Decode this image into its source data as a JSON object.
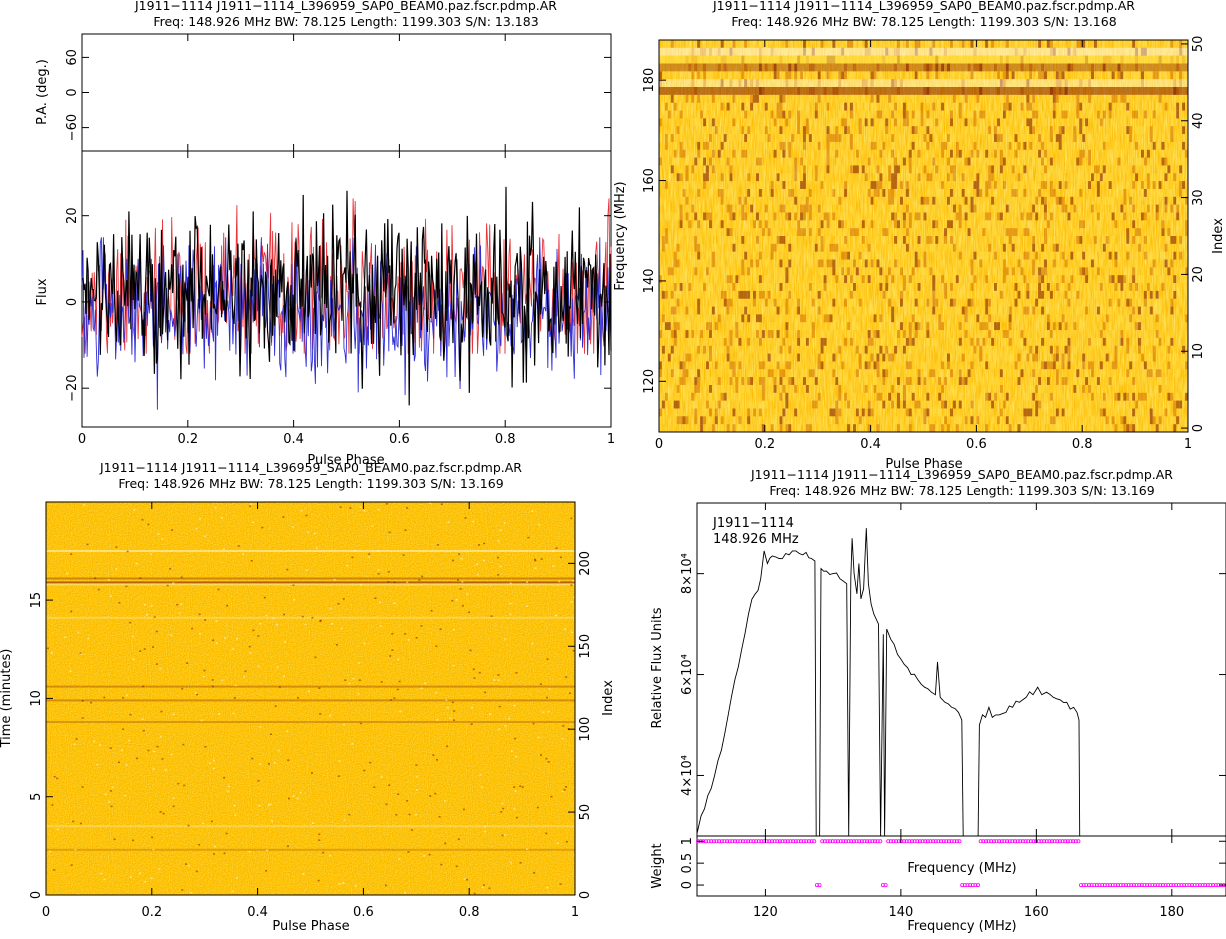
{
  "colors": {
    "flux_I": "#000000",
    "flux_L": "#e8343a",
    "flux_V": "#2f2fd6",
    "weight_marker": "#ff00ff",
    "heat_low": "#ffe04a",
    "heat_mid": "#f5a300",
    "heat_high": "#7a1200"
  },
  "chart_data": [
    {
      "id": "profile",
      "type": "line",
      "title": "J1911−1114 J1911−1114_L396959_SAP0_BEAM0.paz.fscr.pdmp.AR",
      "subtitle": "Freq: 148.926 MHz BW: 78.125 Length: 1199.303 S/N: 13.183",
      "xlabel": "Pulse Phase",
      "ylabel": "Flux",
      "xlim": [
        0,
        1
      ],
      "ylim": [
        -29,
        35
      ],
      "xticks": [
        "0",
        "0.2",
        "0.4",
        "0.6",
        "0.8",
        "1"
      ],
      "yticks": [
        "−20",
        "0",
        "20"
      ],
      "series": [
        {
          "key": "I",
          "approx_range": [
            -24,
            31
          ]
        },
        {
          "key": "L",
          "approx_range": [
            -13,
            24
          ]
        },
        {
          "key": "V",
          "approx_range": [
            -25,
            15
          ]
        }
      ],
      "pa_panel": {
        "ylabel": "P.A. (deg.)",
        "ylim": [
          -100,
          100
        ],
        "yticks": [
          "−60",
          "0",
          "60"
        ]
      }
    },
    {
      "id": "freq_phase",
      "type": "heatmap",
      "title": "J1911−1114 J1911−1114_L396959_SAP0_BEAM0.paz.fscr.pdmp.AR",
      "subtitle": "Freq: 148.926 MHz BW: 78.125 Length: 1199.303 S/N: 13.168",
      "xlabel": "Pulse Phase",
      "ylabel": "Frequency (MHz)",
      "ylabel_right": "Index",
      "xlim": [
        0,
        1
      ],
      "ylim": [
        109.9,
        188.0
      ],
      "xticks": [
        "0",
        "0.2",
        "0.4",
        "0.6",
        "0.8",
        "1"
      ],
      "yticks": [
        "120",
        "140",
        "160",
        "180"
      ],
      "yticks_right": [
        "0",
        "10",
        "20",
        "30",
        "40",
        "50"
      ],
      "index_range": [
        0,
        50
      ]
    },
    {
      "id": "time_phase",
      "type": "heatmap",
      "title": "J1911−1114 J1911−1114_L396959_SAP0_BEAM0.paz.fscr.pdmp.AR",
      "subtitle": "Freq: 148.926 MHz BW: 78.125 Length: 1199.303 S/N: 13.169",
      "xlabel": "Pulse Phase",
      "ylabel": "Time (minutes)",
      "ylabel_right": "Index",
      "xlim": [
        0,
        1
      ],
      "ylim": [
        0,
        19.99
      ],
      "xticks": [
        "0",
        "0.2",
        "0.4",
        "0.6",
        "0.8",
        "1"
      ],
      "yticks": [
        "0",
        "5",
        "10",
        "15"
      ],
      "yticks_right": [
        "0",
        "50",
        "100",
        "150",
        "200"
      ],
      "index_range": [
        0,
        237
      ]
    },
    {
      "id": "bandpass",
      "type": "line",
      "title": "J1911−1114 J1911−1114_L396959_SAP0_BEAM0.paz.fscr.pdmp.AR",
      "subtitle": "Freq: 148.926 MHz BW: 78.125 Length: 1199.303 S/N: 13.169",
      "annotation": [
        "J1911−1114",
        "148.926 MHz"
      ],
      "xlabel": "Frequency (MHz)",
      "ylabel": "Relative Flux Units",
      "xlim": [
        109.9,
        188.0
      ],
      "ylim": [
        28000,
        94000
      ],
      "xticks": [
        "120",
        "140",
        "160",
        "180"
      ],
      "yticks": [
        "4×10⁴",
        "6×10⁴",
        "8×10⁴"
      ],
      "points": [
        [
          109.9,
          28500
        ],
        [
          110.5,
          32000
        ],
        [
          111.5,
          36000
        ],
        [
          112.5,
          40000
        ],
        [
          113.5,
          45000
        ],
        [
          114.5,
          52000
        ],
        [
          115.5,
          59000
        ],
        [
          116.5,
          65000
        ],
        [
          117.5,
          72000
        ],
        [
          118.5,
          76000
        ],
        [
          119.3,
          79000
        ],
        [
          119.8,
          84500
        ],
        [
          120.3,
          82000
        ],
        [
          121.0,
          83500
        ],
        [
          122.0,
          83000
        ],
        [
          123.0,
          84000
        ],
        [
          124.0,
          84500
        ],
        [
          125.0,
          84000
        ],
        [
          126.0,
          84200
        ],
        [
          126.8,
          83000
        ],
        [
          127.3,
          82500
        ],
        [
          127.5,
          28000
        ],
        [
          128.0,
          28000
        ],
        [
          128.2,
          81000
        ],
        [
          129.0,
          80500
        ],
        [
          130.0,
          80000
        ],
        [
          131.0,
          79000
        ],
        [
          132.0,
          78000
        ],
        [
          132.3,
          28000
        ],
        [
          132.6,
          79000
        ],
        [
          132.8,
          87000
        ],
        [
          133.1,
          80000
        ],
        [
          133.5,
          76000
        ],
        [
          133.8,
          82000
        ],
        [
          134.1,
          75000
        ],
        [
          134.5,
          77000
        ],
        [
          134.9,
          89000
        ],
        [
          135.2,
          78000
        ],
        [
          135.6,
          74000
        ],
        [
          136.0,
          72000
        ],
        [
          136.7,
          70000
        ],
        [
          137.0,
          28000
        ],
        [
          137.4,
          68000
        ],
        [
          137.6,
          28000
        ],
        [
          137.9,
          69000
        ],
        [
          138.5,
          67000
        ],
        [
          139.5,
          64000
        ],
        [
          140.5,
          62000
        ],
        [
          141.5,
          60000
        ],
        [
          142.5,
          59000
        ],
        [
          143.5,
          57500
        ],
        [
          144.5,
          56500
        ],
        [
          145.1,
          56000
        ],
        [
          145.4,
          62500
        ],
        [
          145.8,
          55500
        ],
        [
          146.5,
          54500
        ],
        [
          147.5,
          53500
        ],
        [
          148.5,
          52500
        ],
        [
          149.0,
          51000
        ],
        [
          149.2,
          28000
        ],
        [
          151.4,
          28000
        ],
        [
          151.6,
          50000
        ],
        [
          152.5,
          51500
        ],
        [
          153.0,
          53500
        ],
        [
          153.5,
          51500
        ],
        [
          154.5,
          52000
        ],
        [
          155.5,
          52500
        ],
        [
          156.5,
          53500
        ],
        [
          157.5,
          54500
        ],
        [
          158.5,
          55500
        ],
        [
          159.5,
          56000
        ],
        [
          160.2,
          57500
        ],
        [
          160.8,
          56000
        ],
        [
          161.5,
          56500
        ],
        [
          162.5,
          55500
        ],
        [
          163.5,
          55000
        ],
        [
          164.5,
          54500
        ],
        [
          165.5,
          53500
        ],
        [
          166.0,
          52500
        ],
        [
          166.3,
          51000
        ],
        [
          166.4,
          28000
        ]
      ],
      "weight_panel": {
        "ylabel": "Weight",
        "xlabel": "Frequency (MHz)",
        "ylim": [
          -0.25,
          1.12
        ],
        "yticks": [
          "0",
          "0.5",
          "1"
        ],
        "zero_ranges": [
          [
            127.3,
            128.2
          ],
          [
            132.3,
            132.6
          ],
          [
            137.0,
            137.9
          ],
          [
            149.0,
            151.4
          ],
          [
            166.4,
            188.0
          ]
        ]
      }
    }
  ]
}
